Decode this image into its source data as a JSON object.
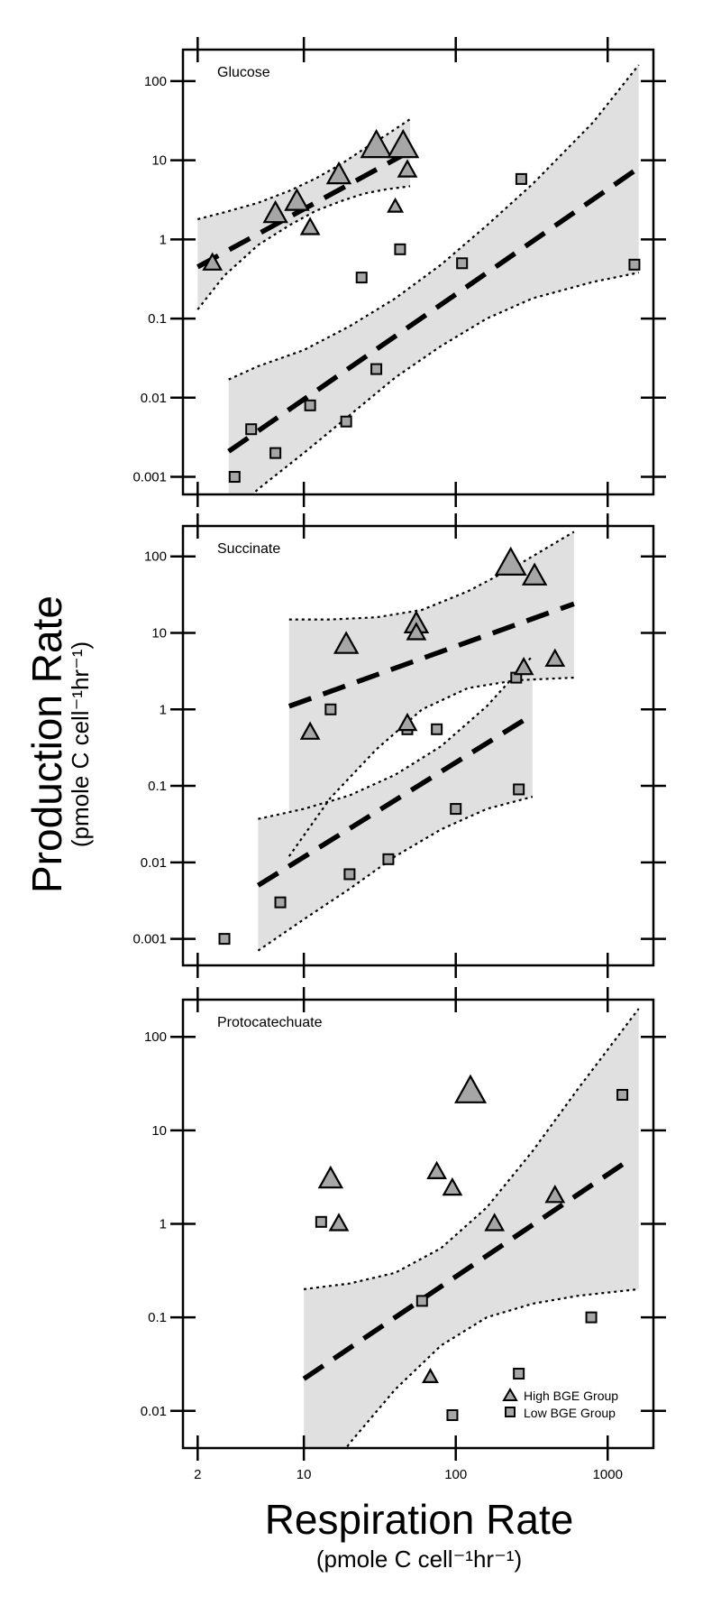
{
  "chart_data": [
    {
      "type": "scatter",
      "title": "Glucose",
      "xscale": "log",
      "yscale": "log",
      "xlim": [
        1.6,
        2000
      ],
      "ylim": [
        0.0006,
        250
      ],
      "ytick_labels": [
        "0.001",
        "0.01",
        "0.1",
        "1",
        "10",
        "100"
      ],
      "series": [
        {
          "name": "High BGE Group",
          "points": [
            [
              2.5,
              0.5
            ],
            [
              6.5,
              2.1
            ],
            [
              9.0,
              3.0
            ],
            [
              11,
              1.4
            ],
            [
              17,
              6.5
            ],
            [
              30,
              15
            ],
            [
              45,
              15
            ],
            [
              48,
              7.5
            ],
            [
              40,
              2.6
            ]
          ],
          "sizes": [
            "m",
            "l",
            "l",
            "m",
            "l",
            "xl",
            "xl",
            "m",
            "s"
          ]
        },
        {
          "name": "Low BGE Group",
          "points": [
            [
              3.5,
              0.001
            ],
            [
              4.5,
              0.004
            ],
            [
              6.5,
              0.002
            ],
            [
              11,
              0.008
            ],
            [
              19,
              0.005
            ],
            [
              24,
              0.33
            ],
            [
              30,
              0.023
            ],
            [
              43,
              0.75
            ],
            [
              110,
              0.5
            ],
            [
              270,
              5.8
            ],
            [
              1500,
              0.48
            ]
          ]
        }
      ],
      "fits": [
        {
          "x": [
            2.0,
            50
          ],
          "y": [
            0.45,
            13
          ],
          "ci_x": [
            2.0,
            3,
            5,
            8,
            12,
            18,
            25,
            35,
            50
          ],
          "ci_lower": [
            0.13,
            0.35,
            0.85,
            1.5,
            2.3,
            3.1,
            3.8,
            4.3,
            4.7
          ],
          "ci_upper": [
            1.8,
            2.2,
            2.9,
            4.1,
            5.9,
            9.2,
            14,
            21,
            33
          ]
        },
        {
          "x": [
            3.2,
            1600
          ],
          "y": [
            0.0021,
            8
          ],
          "ci_x": [
            3.2,
            5,
            10,
            20,
            40,
            80,
            160,
            320,
            800,
            1600
          ],
          "ci_lower": [
            0.0003,
            0.0007,
            0.002,
            0.006,
            0.018,
            0.045,
            0.1,
            0.18,
            0.29,
            0.38
          ],
          "ci_upper": [
            0.017,
            0.025,
            0.04,
            0.08,
            0.18,
            0.48,
            1.5,
            5,
            30,
            160
          ]
        }
      ]
    },
    {
      "type": "scatter",
      "title": "Succinate",
      "xscale": "log",
      "yscale": "log",
      "xlim": [
        1.6,
        2000
      ],
      "ylim": [
        0.00045,
        250
      ],
      "ytick_labels": [
        "0.001",
        "0.01",
        "0.1",
        "1",
        "10",
        "100"
      ],
      "series": [
        {
          "name": "High BGE Group",
          "points": [
            [
              19,
              7
            ],
            [
              11,
              0.5
            ],
            [
              48,
              0.65
            ],
            [
              55,
              13
            ],
            [
              55,
              10
            ],
            [
              230,
              80
            ],
            [
              330,
              55
            ],
            [
              280,
              3.5
            ],
            [
              450,
              4.5
            ]
          ],
          "sizes": [
            "l",
            "m",
            "m",
            "l",
            "m",
            "xl",
            "l",
            "m",
            "m"
          ]
        },
        {
          "name": "Low BGE Group",
          "points": [
            [
              3,
              0.001
            ],
            [
              7,
              0.003
            ],
            [
              15,
              1.0
            ],
            [
              20,
              0.007
            ],
            [
              36,
              0.011
            ],
            [
              48,
              0.55
            ],
            [
              75,
              0.55
            ],
            [
              100,
              0.05
            ],
            [
              250,
              2.6
            ],
            [
              260,
              0.09
            ]
          ]
        }
      ],
      "fits": [
        {
          "x": [
            8,
            600
          ],
          "y": [
            1.1,
            24
          ],
          "ci_x": [
            8,
            15,
            30,
            60,
            120,
            250,
            600
          ],
          "ci_lower": [
            0.012,
            0.07,
            0.3,
            1.0,
            1.9,
            2.4,
            2.6
          ],
          "ci_upper": [
            15,
            15,
            16,
            20,
            35,
            75,
            210
          ]
        },
        {
          "x": [
            5,
            320
          ],
          "y": [
            0.005,
            0.85
          ],
          "ci_x": [
            5,
            10,
            20,
            40,
            80,
            160,
            320
          ],
          "ci_lower": [
            0.0007,
            0.0018,
            0.0045,
            0.012,
            0.027,
            0.05,
            0.072
          ],
          "ci_upper": [
            0.037,
            0.05,
            0.075,
            0.14,
            0.33,
            1.1,
            5
          ]
        }
      ]
    },
    {
      "type": "scatter",
      "title": "Protocatechuate",
      "xscale": "log",
      "yscale": "log",
      "xlim": [
        1.6,
        2000
      ],
      "ylim": [
        0.004,
        250
      ],
      "ytick_labels": [
        "0.01",
        "0.1",
        "1",
        "10",
        "100"
      ],
      "series": [
        {
          "name": "High BGE Group",
          "points": [
            [
              15,
              3.0
            ],
            [
              17,
              1.0
            ],
            [
              68,
              0.023
            ],
            [
              75,
              3.6
            ],
            [
              95,
              2.4
            ],
            [
              125,
              26
            ],
            [
              180,
              1.0
            ],
            [
              450,
              2.0
            ]
          ],
          "sizes": [
            "l",
            "m",
            "s",
            "m",
            "m",
            "xl",
            "m",
            "m"
          ]
        },
        {
          "name": "Low BGE Group",
          "points": [
            [
              13,
              1.05
            ],
            [
              60,
              0.15
            ],
            [
              95,
              0.009
            ],
            [
              260,
              0.025
            ],
            [
              780,
              0.1
            ],
            [
              1250,
              24
            ]
          ]
        }
      ],
      "fits": [
        {
          "x": [
            10,
            1300
          ],
          "y": [
            0.022,
            4.5
          ],
          "ci_x": [
            10,
            20,
            40,
            80,
            160,
            320,
            640,
            1600
          ],
          "ci_lower": [
            0.0009,
            0.0045,
            0.017,
            0.05,
            0.1,
            0.14,
            0.17,
            0.2
          ],
          "ci_upper": [
            0.2,
            0.23,
            0.3,
            0.55,
            1.5,
            6,
            28,
            200
          ]
        }
      ]
    }
  ],
  "x_tick_labels": [
    {
      "value": 2,
      "label": "2"
    },
    {
      "value": 10,
      "label": "10"
    },
    {
      "value": 100,
      "label": "100"
    },
    {
      "value": 1000,
      "label": "1000"
    }
  ],
  "x_axis_title": "Respiration Rate",
  "x_axis_units": "(pmole C cell⁻¹hr⁻¹)",
  "y_axis_title": "Production Rate",
  "y_axis_units": "(pmole C cell⁻¹hr⁻¹)",
  "legend": {
    "placement": "bottom-right of third panel",
    "high_label": "High BGE Group",
    "low_label": "Low BGE Group"
  },
  "colors": {
    "marker_fill": "#a6a6a6",
    "ci_band": "#e0e0e0",
    "line": "#000000"
  }
}
